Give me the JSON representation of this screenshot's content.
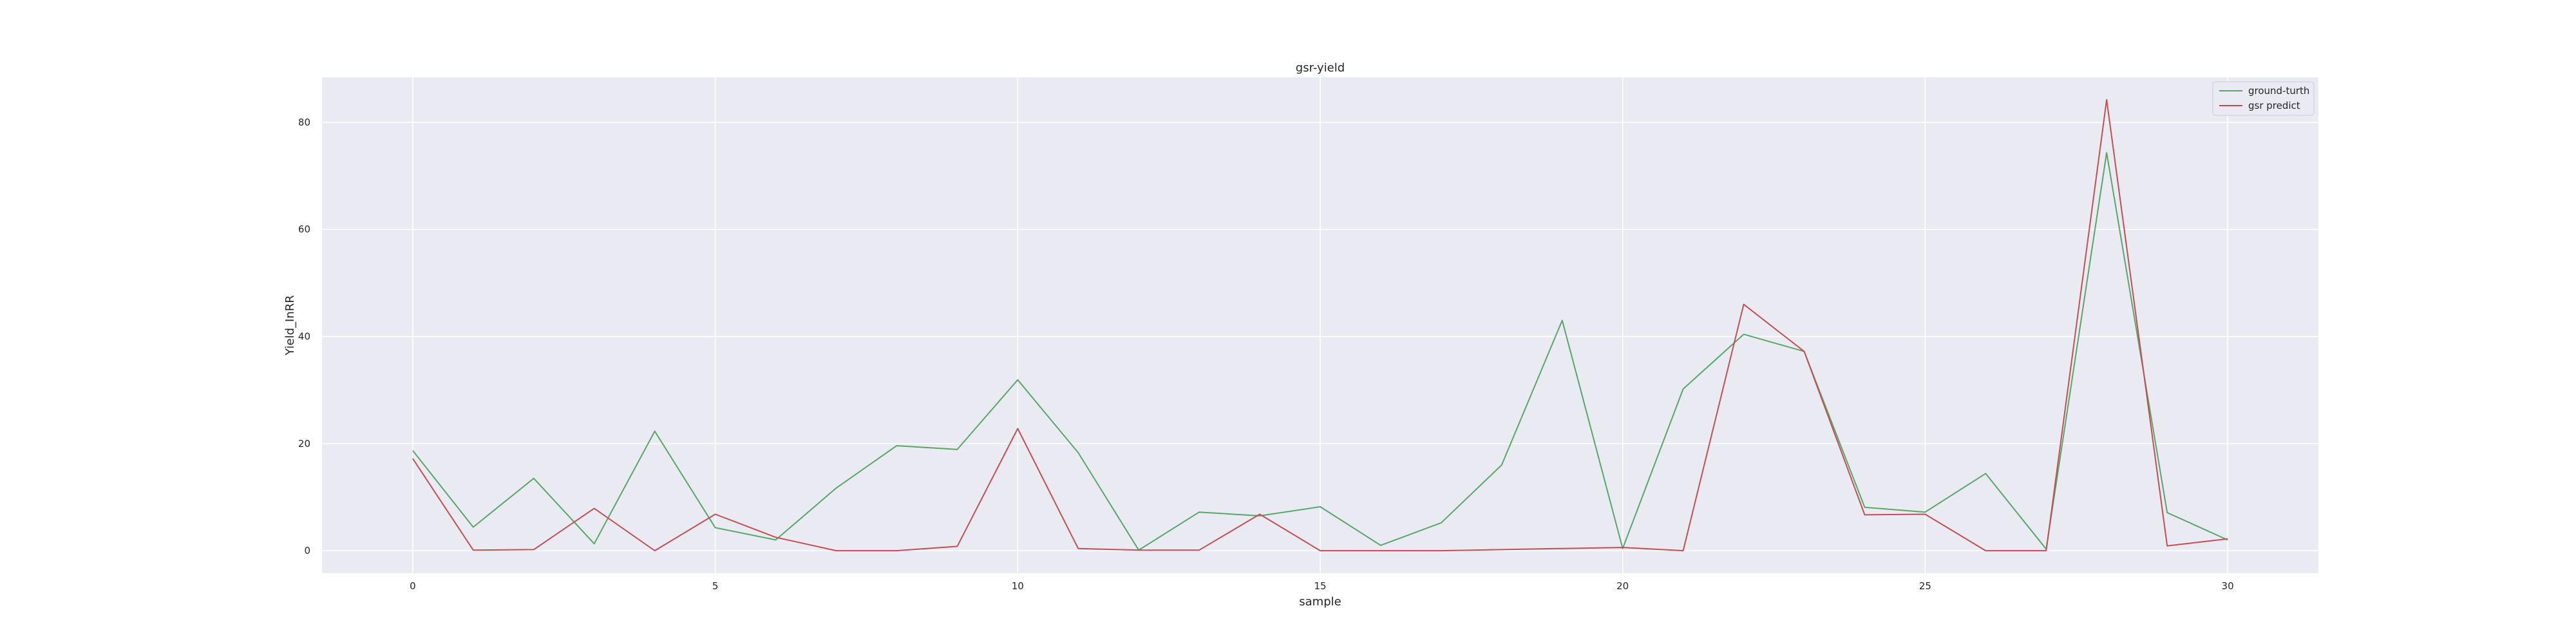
{
  "chart_data": {
    "type": "line",
    "title": "gsr-yield",
    "xlabel": "sample",
    "ylabel": "Yield_InRR",
    "xlim": [
      -1.5,
      31.5
    ],
    "ylim": [
      -4.2,
      88.4
    ],
    "xticks": [
      0,
      5,
      10,
      15,
      20,
      25,
      30
    ],
    "yticks": [
      0,
      20,
      40,
      60,
      80
    ],
    "grid": true,
    "legend_position": "top-right",
    "x": [
      0,
      1,
      2,
      3,
      4,
      5,
      6,
      7,
      8,
      9,
      10,
      11,
      12,
      13,
      14,
      15,
      16,
      17,
      18,
      19,
      20,
      21,
      22,
      23,
      24,
      25,
      26,
      27,
      28,
      29,
      30
    ],
    "series": [
      {
        "name": "ground-turth",
        "color": "#55a868",
        "values": [
          18.7,
          4.4,
          13.5,
          1.3,
          22.3,
          4.3,
          2.0,
          11.7,
          19.6,
          18.9,
          31.9,
          18.3,
          0.1,
          7.2,
          6.5,
          8.2,
          1.0,
          5.2,
          16.0,
          43.0,
          0.4,
          30.2,
          40.4,
          37.2,
          8.1,
          7.2,
          14.4,
          0.3,
          74.3,
          7.1,
          2.0
        ]
      },
      {
        "name": "gsr predict",
        "color": "#c44e52",
        "values": [
          17.2,
          0.1,
          0.2,
          7.9,
          0.0,
          6.8,
          2.5,
          0.0,
          0.0,
          0.8,
          22.8,
          0.4,
          0.1,
          0.1,
          6.8,
          0.0,
          0.0,
          0.0,
          0.2,
          0.4,
          0.6,
          0.0,
          46.0,
          37.2,
          6.7,
          6.8,
          0.0,
          0.0,
          84.2,
          0.9,
          2.2
        ]
      }
    ]
  },
  "style": {
    "plot_bg": "#eaeaf2",
    "grid_color": "#ffffff",
    "text_color": "#262626"
  }
}
